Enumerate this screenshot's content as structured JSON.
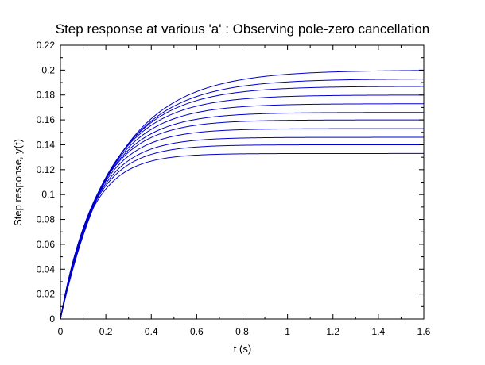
{
  "chart_data": {
    "type": "line",
    "title": "Step response at various 'a' : Observing pole-zero cancellation",
    "xlabel": "t (s)",
    "ylabel": "Step response, y(t)",
    "xlim": [
      0,
      1.6
    ],
    "ylim": [
      0,
      0.22
    ],
    "x_ticks": [
      "0",
      "0.2",
      "0.4",
      "0.6",
      "0.8",
      "1",
      "1.2",
      "1.4",
      "1.6"
    ],
    "y_ticks": [
      "0",
      "0.02",
      "0.04",
      "0.06",
      "0.08",
      "0.1",
      "0.12",
      "0.14",
      "0.16",
      "0.18",
      "0.2",
      "0.22"
    ],
    "grid": false,
    "box": true,
    "line_color": "#0000cc",
    "x_start": 0,
    "x_end": 1.6,
    "series": [
      {
        "final": 0.2,
        "tau": 0.245
      },
      {
        "final": 0.193,
        "tau": 0.23
      },
      {
        "final": 0.187,
        "tau": 0.215
      },
      {
        "final": 0.18,
        "tau": 0.2
      },
      {
        "final": 0.173,
        "tau": 0.188
      },
      {
        "final": 0.166,
        "tau": 0.176
      },
      {
        "final": 0.16,
        "tau": 0.165
      },
      {
        "final": 0.153,
        "tau": 0.155
      },
      {
        "final": 0.146,
        "tau": 0.146
      },
      {
        "final": 0.14,
        "tau": 0.138
      },
      {
        "final": 0.133,
        "tau": 0.13
      }
    ]
  }
}
